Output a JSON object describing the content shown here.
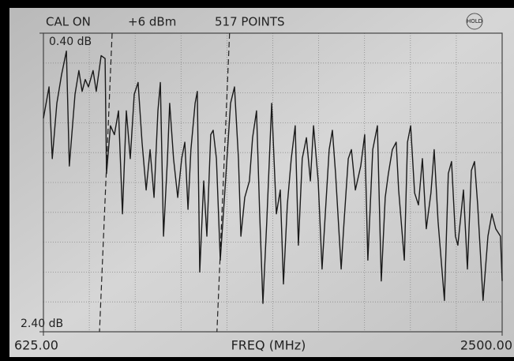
{
  "chart_data": {
    "type": "line",
    "header": [
      "CAL ON",
      "+6 dBm",
      "517 POINTS"
    ],
    "hold_label": "HOLD",
    "xlabel": "FREQ (MHz)",
    "xlim": [
      625,
      2500
    ],
    "xticks": [
      {
        "value": 625,
        "label": "625.00"
      },
      {
        "value": 2500,
        "label": "2500.00"
      }
    ],
    "ylim": [
      2.4,
      0.4
    ],
    "yticks": [
      {
        "value": 0.4,
        "label": "0.40 dB"
      },
      {
        "value": 2.4,
        "label": "2.40 dB"
      }
    ],
    "grid": {
      "x_divisions": 10,
      "y_divisions": 10
    },
    "markers": [
      880,
      1360
    ],
    "series": [
      {
        "color": "#1a1a1a",
        "x": [
          625,
          648,
          661,
          680,
          699,
          719,
          731,
          754,
          770,
          783,
          796,
          809,
          828,
          841,
          861,
          877,
          883,
          899,
          915,
          932,
          948,
          964,
          980,
          996,
          1012,
          1028,
          1045,
          1061,
          1077,
          1093,
          1103,
          1116,
          1132,
          1141,
          1157,
          1174,
          1190,
          1203,
          1216,
          1228,
          1245,
          1254,
          1264,
          1280,
          1293,
          1309,
          1319,
          1332,
          1348,
          1367,
          1390,
          1406,
          1422,
          1432,
          1448,
          1467,
          1480,
          1496,
          1509,
          1522,
          1538,
          1558,
          1577,
          1593,
          1606,
          1622,
          1638,
          1654,
          1667,
          1683,
          1700,
          1716,
          1729,
          1748,
          1764,
          1777,
          1793,
          1806,
          1819,
          1842,
          1854,
          1871,
          1884,
          1900,
          1922,
          1938,
          1951,
          1971,
          1990,
          2006,
          2022,
          2035,
          2051,
          2067,
          2077,
          2100,
          2113,
          2126,
          2142,
          2158,
          2174,
          2190,
          2209,
          2222,
          2238,
          2264,
          2280,
          2293,
          2309,
          2319,
          2342,
          2358,
          2374,
          2387,
          2400,
          2422,
          2442,
          2458,
          2474,
          2493,
          2500
        ],
        "values": [
          0.97,
          0.76,
          1.24,
          0.87,
          0.68,
          0.52,
          1.29,
          0.81,
          0.65,
          0.79,
          0.71,
          0.76,
          0.65,
          0.79,
          0.55,
          0.57,
          1.34,
          1.02,
          1.08,
          0.92,
          1.61,
          0.92,
          1.24,
          0.81,
          0.73,
          1.13,
          1.45,
          1.18,
          1.5,
          0.92,
          0.73,
          1.76,
          1.24,
          0.87,
          1.24,
          1.5,
          1.24,
          1.13,
          1.58,
          1.18,
          0.87,
          0.79,
          2.0,
          1.39,
          1.76,
          1.08,
          1.05,
          1.24,
          1.92,
          1.45,
          0.87,
          0.76,
          1.24,
          1.76,
          1.5,
          1.39,
          1.1,
          0.92,
          1.61,
          2.21,
          1.66,
          0.87,
          1.61,
          1.45,
          2.08,
          1.55,
          1.24,
          1.02,
          1.82,
          1.24,
          1.1,
          1.39,
          1.02,
          1.39,
          1.98,
          1.61,
          1.18,
          1.05,
          1.34,
          1.98,
          1.66,
          1.24,
          1.18,
          1.45,
          1.29,
          1.08,
          1.92,
          1.18,
          1.02,
          2.06,
          1.5,
          1.34,
          1.18,
          1.13,
          1.45,
          1.92,
          1.13,
          1.02,
          1.47,
          1.55,
          1.24,
          1.71,
          1.47,
          1.18,
          1.66,
          2.19,
          1.34,
          1.26,
          1.76,
          1.82,
          1.45,
          1.98,
          1.32,
          1.26,
          1.55,
          2.19,
          1.76,
          1.61,
          1.71,
          1.76,
          2.06
        ]
      }
    ]
  }
}
